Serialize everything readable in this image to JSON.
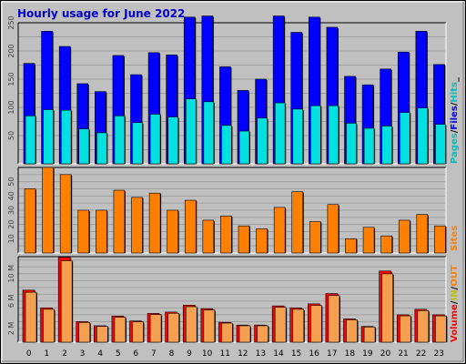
{
  "title": "Hourly usage for June 2022",
  "colors": {
    "background": "#c0c0c0",
    "hits": "#00c0ff",
    "files": "#0000ff",
    "pages": "#00e0e0",
    "sites": "#ff8000",
    "kbytes": "#ff0000",
    "kbytes_in": "#ffff00",
    "kbytes_out": "#ff8000",
    "title": "#0000cc",
    "grid": "#a0a0a0"
  },
  "legends": {
    "top": [
      {
        "text": "Pages",
        "color": "#00c0c0"
      },
      {
        "text": "/",
        "color": "#000000"
      },
      {
        "text": "Files",
        "color": "#0000ff"
      },
      {
        "text": "/",
        "color": "#000000"
      },
      {
        "text": "Hits",
        "color": "#00c0c0"
      },
      {
        "text": "_",
        "color": "#000000"
      }
    ],
    "middle": [
      {
        "text": "Sites",
        "color": "#ff8000"
      }
    ],
    "bottom": [
      {
        "text": "Volume",
        "color": "#ff0000"
      },
      {
        "text": "/",
        "color": "#000000"
      },
      {
        "text": "IN",
        "color": "#c0c000"
      },
      {
        "text": "/",
        "color": "#000000"
      },
      {
        "text": "OUT",
        "color": "#ff8000"
      }
    ]
  },
  "chart_data": [
    {
      "type": "bar",
      "panel": "hits-files-pages",
      "categories": [
        "0",
        "1",
        "2",
        "3",
        "4",
        "5",
        "6",
        "7",
        "8",
        "9",
        "10",
        "11",
        "12",
        "13",
        "14",
        "15",
        "16",
        "17",
        "18",
        "19",
        "20",
        "21",
        "22",
        "23"
      ],
      "ylim": [
        0,
        250
      ],
      "yticks": [
        "50",
        "100",
        "150",
        "200",
        "250"
      ],
      "series": [
        {
          "name": "Files",
          "values": [
            178,
            235,
            208,
            142,
            128,
            192,
            158,
            197,
            193,
            260,
            262,
            172,
            130,
            150,
            262,
            233,
            260,
            242,
            155,
            140,
            168,
            198,
            235,
            176
          ]
        },
        {
          "name": "Hits",
          "values": [
            85,
            96,
            95,
            62,
            55,
            85,
            73,
            88,
            83,
            115,
            110,
            68,
            58,
            81,
            108,
            97,
            103,
            103,
            72,
            63,
            67,
            91,
            99,
            70
          ]
        }
      ]
    },
    {
      "type": "bar",
      "panel": "sites",
      "categories": [
        "0",
        "1",
        "2",
        "3",
        "4",
        "5",
        "6",
        "7",
        "8",
        "9",
        "10",
        "11",
        "12",
        "13",
        "14",
        "15",
        "16",
        "17",
        "18",
        "19",
        "20",
        "21",
        "22",
        "23"
      ],
      "ylim": [
        0,
        60
      ],
      "yticks": [
        "10",
        "20",
        "30",
        "40",
        "50"
      ],
      "series": [
        {
          "name": "Sites",
          "values": [
            45,
            60,
            55,
            30,
            30,
            44,
            39,
            42,
            30,
            37,
            23,
            26,
            19,
            17,
            32,
            43,
            22,
            34,
            10,
            18,
            12,
            23,
            27,
            19
          ]
        }
      ]
    },
    {
      "type": "bar",
      "panel": "volume",
      "categories": [
        "0",
        "1",
        "2",
        "3",
        "4",
        "5",
        "6",
        "7",
        "8",
        "9",
        "10",
        "11",
        "12",
        "13",
        "14",
        "15",
        "16",
        "17",
        "18",
        "19",
        "20",
        "21",
        "22",
        "23"
      ],
      "ylim": [
        0,
        12.5
      ],
      "yticks": [
        "2 M",
        "6 M",
        "10 M"
      ],
      "series": [
        {
          "name": "Volume",
          "values": [
            7.6,
            5.0,
            12.4,
            3.0,
            2.4,
            3.8,
            3.1,
            4.2,
            4.4,
            5.4,
            4.9,
            2.9,
            2.5,
            2.5,
            5.3,
            5.0,
            5.6,
            7.1,
            3.4,
            2.3,
            10.4,
            4.0,
            4.8,
            4.0
          ]
        }
      ]
    }
  ]
}
